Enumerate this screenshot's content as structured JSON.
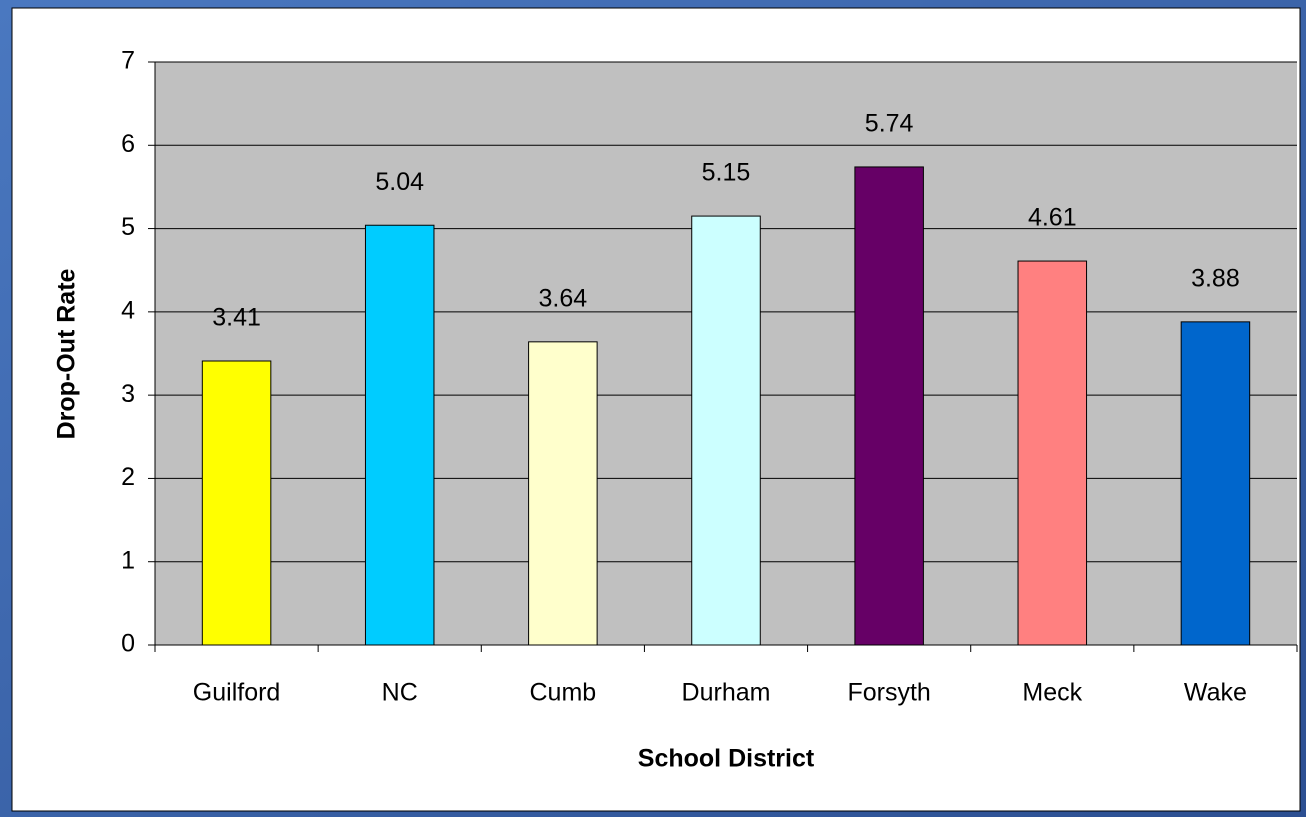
{
  "chart_data": {
    "type": "bar",
    "categories": [
      "Guilford",
      "NC",
      "Cumb",
      "Durham",
      "Forsyth",
      "Meck",
      "Wake"
    ],
    "values": [
      3.41,
      5.04,
      3.64,
      5.15,
      5.74,
      4.61,
      3.88
    ],
    "colors": [
      "#ffff00",
      "#00ccff",
      "#ffffcc",
      "#ccffff",
      "#660066",
      "#ff8080",
      "#0066cc"
    ],
    "x_label": "School District",
    "y_label": "Drop-Out Rate",
    "ylim": [
      0,
      7
    ],
    "yticks": [
      0,
      1,
      2,
      3,
      4,
      5,
      6,
      7
    ],
    "grid": true
  }
}
